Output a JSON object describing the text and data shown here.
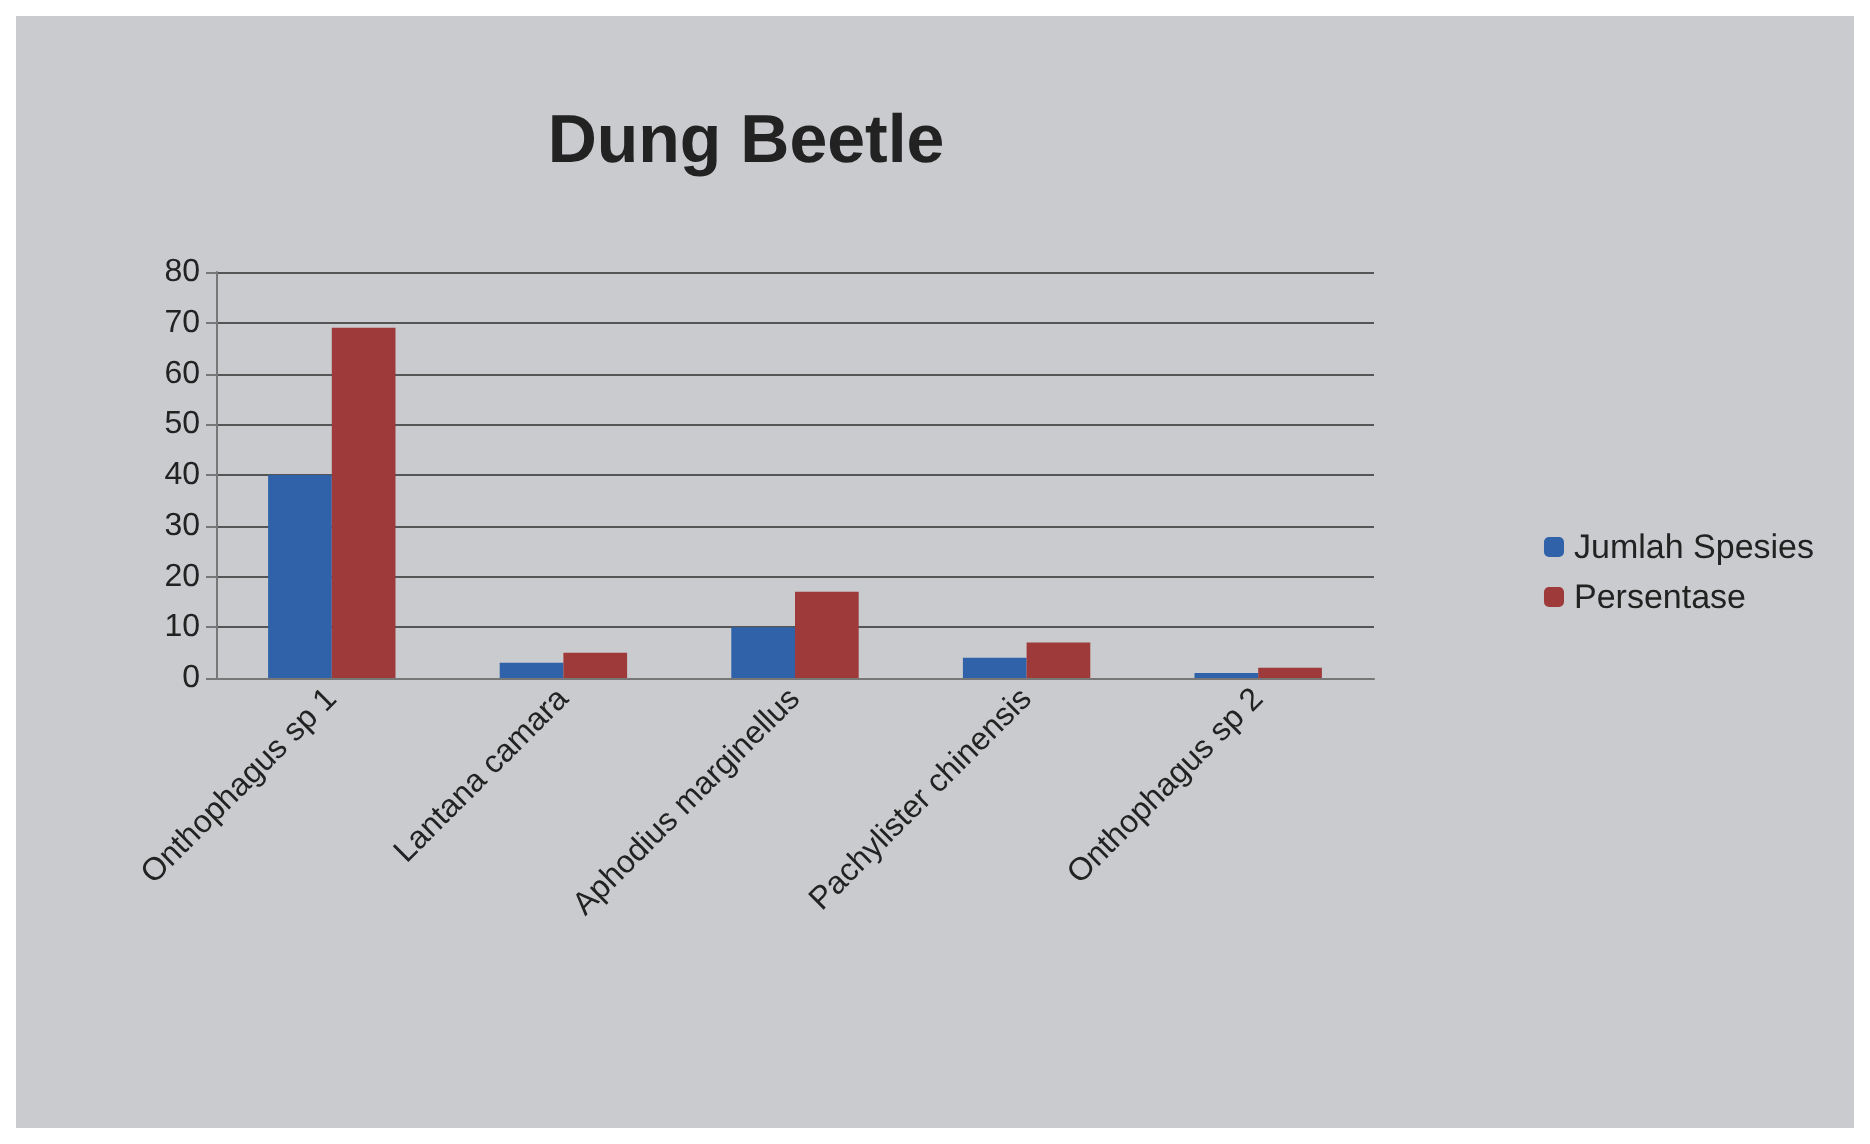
{
  "chart_data": {
    "type": "bar",
    "title": "Dung Beetle",
    "categories": [
      "Onthophagus sp 1",
      "Lantana camara",
      "Aphodius marginellus",
      "Pachylister chinensis",
      "Onthophagus sp 2"
    ],
    "series": [
      {
        "name": "Jumlah Spesies",
        "color": "#2f62a8",
        "values": [
          40,
          3,
          10,
          4,
          1
        ]
      },
      {
        "name": "Persentase",
        "color": "#9e3a3a",
        "values": [
          69,
          5,
          17,
          7,
          2
        ]
      }
    ],
    "ylim": [
      0,
      80
    ],
    "yticks": [
      0,
      10,
      20,
      30,
      40,
      50,
      60,
      70,
      80
    ],
    "grid": "y",
    "legend": "right"
  }
}
